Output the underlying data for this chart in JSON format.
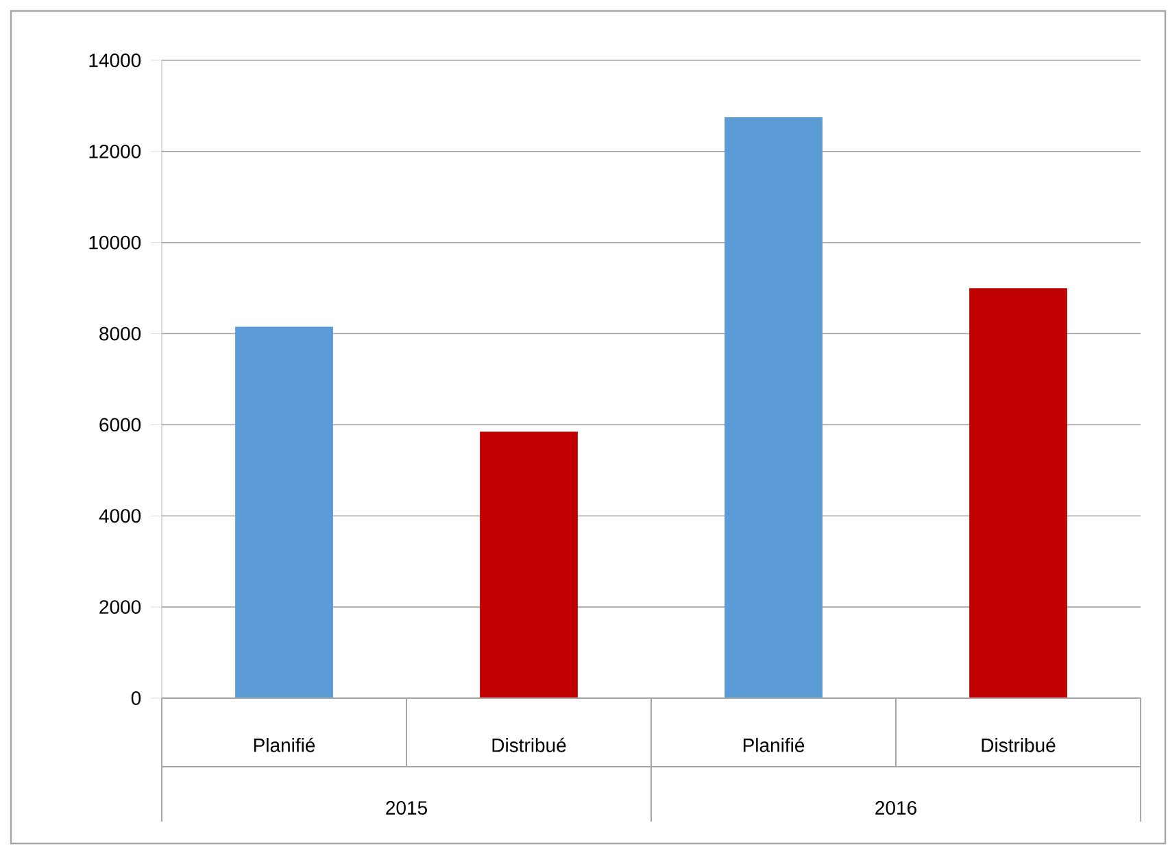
{
  "chart_data": {
    "type": "bar",
    "categories": [
      "Planifié",
      "Distribué",
      "Planifié",
      "Distribué"
    ],
    "values": [
      8150,
      5850,
      12750,
      9000
    ],
    "colors": [
      "#5b9bd5",
      "#c00000",
      "#5b9bd5",
      "#c00000"
    ],
    "ylim": [
      0,
      14000
    ],
    "yticks": [
      0,
      2000,
      4000,
      6000,
      8000,
      10000,
      12000,
      14000
    ],
    "grid": "y",
    "annotations": [
      "2015",
      "2016"
    ]
  }
}
